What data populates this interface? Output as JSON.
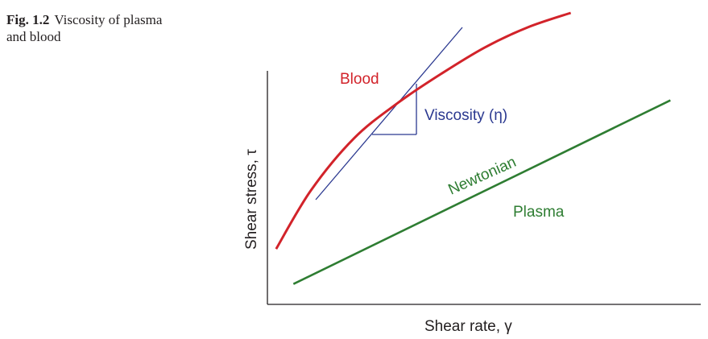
{
  "caption": {
    "label": "Fig. 1.2",
    "text": "Viscosity of plasma and blood"
  },
  "colors": {
    "blood": "#d2232a",
    "tangent": "#2b3990",
    "plasma": "#2e7d32",
    "axis": "#231f20"
  },
  "chart_data": {
    "type": "line",
    "xlabel": "Shear rate, γ",
    "ylabel": "Shear stress, τ",
    "xlim": [
      0,
      10
    ],
    "ylim": [
      0,
      10
    ],
    "grid": false,
    "series": [
      {
        "name": "Blood",
        "x": [
          0.2,
          1.0,
          2.0,
          3.0,
          4.0,
          5.0,
          6.0,
          7.0
        ],
        "y": [
          1.9,
          3.9,
          5.7,
          6.9,
          7.9,
          8.8,
          9.5,
          10.0
        ]
      },
      {
        "name": "Plasma",
        "x": [
          0.6,
          9.3
        ],
        "y": [
          0.7,
          7.0
        ]
      }
    ],
    "annotations": {
      "blood_label": "Blood",
      "viscosity_label": "Viscosity (η)",
      "newtonian_label": "Newtonian",
      "plasma_label": "Plasma"
    }
  }
}
